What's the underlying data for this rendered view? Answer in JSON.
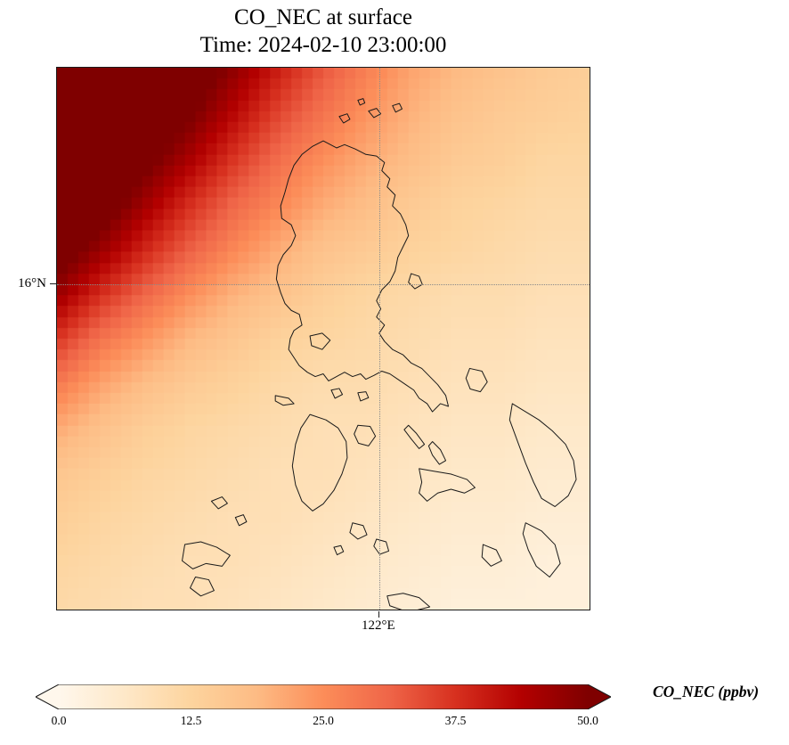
{
  "title": {
    "line1": "CO_NEC at surface",
    "line2": "Time: 2024-02-10 23:00:00"
  },
  "axes": {
    "y_tick": {
      "label": "16°N",
      "fraction": 0.398
    },
    "x_tick": {
      "label": "122°E",
      "fraction": 0.603
    }
  },
  "colorbar": {
    "label": "CO_NEC (ppbv)",
    "ticks": [
      "0.0",
      "12.5",
      "25.0",
      "37.5",
      "50.0"
    ],
    "tick_values": [
      0,
      12.5,
      25,
      37.5,
      50
    ],
    "vmin": 0,
    "vmax": 50,
    "extend": "both"
  },
  "chart_data": {
    "type": "heatmap",
    "title": "CO_NEC at surface",
    "subtitle": "Time: 2024-02-10 23:00:00",
    "variable": "CO_NEC",
    "units": "ppbv",
    "vmin": 0,
    "vmax": 50,
    "colorbar_ticks": [
      0,
      12.5,
      25,
      37.5,
      50
    ],
    "x_axis": {
      "tick_label": "122°E",
      "tick_fraction": 0.603
    },
    "y_axis": {
      "tick_label": "16°N",
      "tick_fraction": 0.398
    },
    "grid_on": true,
    "colormap": {
      "name": "OrRd",
      "stops": [
        [
          0.0,
          "#fff7ec"
        ],
        [
          0.125,
          "#fee8c8"
        ],
        [
          0.25,
          "#fdd49e"
        ],
        [
          0.375,
          "#fdbb84"
        ],
        [
          0.5,
          "#fc8d59"
        ],
        [
          0.625,
          "#ef6548"
        ],
        [
          0.75,
          "#d7301f"
        ],
        [
          0.875,
          "#b30000"
        ],
        [
          1.0,
          "#7f0000"
        ]
      ]
    },
    "grid": {
      "rows": 13,
      "cols": 13,
      "description": "CO_NEC ppbv field sampled on a 13x13 grid over the plot area, row 0 = top (north), col 0 = left (west); plume maximum in the northwest corner decaying toward the southeast",
      "values": [
        [
          65,
          63,
          60,
          55,
          48,
          40,
          33,
          27,
          22,
          19,
          17,
          15,
          14
        ],
        [
          64,
          61,
          57,
          51,
          43,
          35,
          29,
          24,
          20,
          17,
          15,
          14,
          13
        ],
        [
          62,
          58,
          52,
          45,
          37,
          30,
          25,
          21,
          18,
          15,
          14,
          12,
          12
        ],
        [
          59,
          54,
          46,
          38,
          31,
          26,
          21,
          18,
          15,
          13,
          12,
          11,
          11
        ],
        [
          55,
          47,
          39,
          32,
          26,
          21,
          17,
          15,
          13,
          12,
          11,
          10,
          10
        ],
        [
          47,
          38,
          31,
          25,
          20,
          17,
          14,
          12,
          11,
          10,
          10,
          9,
          9
        ],
        [
          37,
          29,
          24,
          19,
          16,
          13,
          12,
          11,
          10,
          9,
          9,
          8,
          8
        ],
        [
          28,
          22,
          18,
          15,
          13,
          11,
          10,
          10,
          9,
          8,
          8,
          7,
          7
        ],
        [
          21,
          17,
          14,
          12,
          11,
          10,
          9,
          9,
          8,
          7,
          7,
          6,
          6
        ],
        [
          16,
          14,
          12,
          11,
          10,
          9,
          9,
          8,
          7,
          6,
          6,
          5,
          5
        ],
        [
          14,
          12,
          11,
          10,
          9,
          9,
          8,
          7,
          6,
          5,
          5,
          4,
          4
        ],
        [
          12,
          11,
          10,
          9,
          9,
          8,
          7,
          6,
          5,
          4,
          4,
          3,
          3
        ],
        [
          11,
          10,
          9,
          9,
          8,
          7,
          6,
          5,
          4,
          3,
          3,
          3,
          3
        ]
      ]
    },
    "coastlines": [
      [
        [
          50,
          13.5
        ],
        [
          52.5,
          14.8
        ],
        [
          54,
          14.2
        ],
        [
          56,
          15
        ],
        [
          58,
          16
        ],
        [
          60,
          16.3
        ],
        [
          61.5,
          17.5
        ],
        [
          61,
          19
        ],
        [
          62.5,
          20.5
        ],
        [
          62,
          22
        ],
        [
          63.5,
          23.5
        ],
        [
          63,
          25.5
        ],
        [
          64.5,
          27
        ],
        [
          65.5,
          29
        ],
        [
          66,
          31
        ],
        [
          65,
          33
        ],
        [
          64,
          35
        ],
        [
          63.5,
          37.5
        ],
        [
          62.5,
          39.5
        ],
        [
          61,
          41
        ],
        [
          60,
          43
        ],
        [
          60.8,
          44.5
        ],
        [
          60,
          46
        ],
        [
          61.5,
          47.5
        ],
        [
          60.5,
          49
        ],
        [
          61.5,
          50.5
        ],
        [
          63,
          52
        ],
        [
          65,
          53
        ],
        [
          66.5,
          54.5
        ],
        [
          68.5,
          55.5
        ],
        [
          70,
          57
        ],
        [
          71.5,
          58.5
        ],
        [
          73,
          60.5
        ],
        [
          73.5,
          62.5
        ],
        [
          72,
          62
        ],
        [
          70.5,
          63.5
        ],
        [
          69.5,
          62
        ],
        [
          68,
          61
        ],
        [
          67,
          59.5
        ],
        [
          65.5,
          58.5
        ],
        [
          64,
          57.5
        ],
        [
          62.5,
          56.5
        ],
        [
          61,
          56
        ],
        [
          59.5,
          56.8
        ],
        [
          58,
          57.5
        ],
        [
          57,
          56.5
        ],
        [
          55.5,
          57
        ],
        [
          54,
          56.2
        ],
        [
          52.5,
          57
        ],
        [
          51,
          57.8
        ],
        [
          50,
          56.5
        ],
        [
          48.5,
          57
        ],
        [
          47,
          56.2
        ],
        [
          45.5,
          55
        ],
        [
          44.5,
          53.5
        ],
        [
          43.5,
          52
        ],
        [
          43.8,
          50
        ],
        [
          44.5,
          48.5
        ],
        [
          46,
          47.5
        ],
        [
          45.5,
          45.5
        ],
        [
          44,
          44.8
        ],
        [
          42.8,
          43.5
        ],
        [
          42,
          41.5
        ],
        [
          41.2,
          39
        ],
        [
          41.5,
          36.5
        ],
        [
          42.5,
          34.5
        ],
        [
          44,
          32.8
        ],
        [
          44.8,
          31
        ],
        [
          44,
          29
        ],
        [
          42.2,
          27.8
        ],
        [
          42,
          25.5
        ],
        [
          42.8,
          23
        ],
        [
          43.5,
          20.5
        ],
        [
          44.5,
          18
        ],
        [
          46,
          16
        ],
        [
          48,
          14.5
        ]
      ],
      [
        [
          53,
          9
        ],
        [
          54.5,
          8.5
        ],
        [
          55,
          9.5
        ],
        [
          53.8,
          10.2
        ]
      ],
      [
        [
          58.5,
          8
        ],
        [
          60,
          7.5
        ],
        [
          60.8,
          8.5
        ],
        [
          59.5,
          9.2
        ]
      ],
      [
        [
          63,
          7
        ],
        [
          64.3,
          6.6
        ],
        [
          64.8,
          7.6
        ],
        [
          63.6,
          8.2
        ]
      ],
      [
        [
          56.5,
          6
        ],
        [
          57.5,
          5.7
        ],
        [
          57.8,
          6.5
        ],
        [
          56.9,
          6.9
        ]
      ],
      [
        [
          47.5,
          64
        ],
        [
          50.5,
          65
        ],
        [
          52.8,
          66.5
        ],
        [
          54.3,
          69
        ],
        [
          54.5,
          72
        ],
        [
          53.5,
          75
        ],
        [
          52,
          78
        ],
        [
          50,
          80.5
        ],
        [
          48,
          81.8
        ],
        [
          46,
          80
        ],
        [
          44.8,
          77
        ],
        [
          44.2,
          73.5
        ],
        [
          44.8,
          69.5
        ],
        [
          45.8,
          66.5
        ]
      ],
      [
        [
          41,
          60.5
        ],
        [
          43.5,
          61
        ],
        [
          44.5,
          62
        ],
        [
          42.5,
          62.3
        ],
        [
          41,
          61.5
        ]
      ],
      [
        [
          56.5,
          66
        ],
        [
          58.8,
          66.2
        ],
        [
          59.8,
          68
        ],
        [
          58.5,
          69.8
        ],
        [
          56.6,
          69.3
        ],
        [
          55.8,
          67.6
        ]
      ],
      [
        [
          77.5,
          55.5
        ],
        [
          79.8,
          56
        ],
        [
          80.8,
          58
        ],
        [
          79.5,
          59.8
        ],
        [
          77.6,
          59.3
        ],
        [
          76.8,
          57.3
        ]
      ],
      [
        [
          66,
          66
        ],
        [
          67.5,
          67.5
        ],
        [
          69,
          69.5
        ],
        [
          68,
          70.3
        ],
        [
          66.5,
          68.5
        ],
        [
          65.2,
          66.8
        ]
      ],
      [
        [
          70.5,
          69
        ],
        [
          72,
          70.5
        ],
        [
          73,
          72.5
        ],
        [
          71.8,
          73.2
        ],
        [
          70.5,
          71.5
        ],
        [
          69.8,
          69.8
        ]
      ],
      [
        [
          68,
          74
        ],
        [
          71,
          74.5
        ],
        [
          74,
          75
        ],
        [
          77,
          76
        ],
        [
          78.5,
          77.5
        ],
        [
          76.5,
          78.5
        ],
        [
          74,
          77.8
        ],
        [
          71.5,
          78.5
        ],
        [
          69.5,
          80
        ],
        [
          68,
          78.5
        ],
        [
          68.5,
          76.5
        ]
      ],
      [
        [
          85.5,
          62
        ],
        [
          88,
          63.5
        ],
        [
          90.5,
          65
        ],
        [
          93,
          67
        ],
        [
          95.5,
          69.5
        ],
        [
          97,
          72.5
        ],
        [
          97.5,
          76
        ],
        [
          96,
          79
        ],
        [
          93.5,
          81
        ],
        [
          91,
          79.5
        ],
        [
          89.5,
          76.5
        ],
        [
          88,
          73
        ],
        [
          86.5,
          69
        ],
        [
          85,
          65
        ]
      ],
      [
        [
          88,
          84
        ],
        [
          91,
          85.5
        ],
        [
          93.5,
          88
        ],
        [
          94.5,
          91.5
        ],
        [
          92.5,
          94
        ],
        [
          90,
          92
        ],
        [
          88.5,
          89
        ],
        [
          87.5,
          86
        ]
      ],
      [
        [
          80,
          88
        ],
        [
          82.5,
          89
        ],
        [
          83.5,
          91
        ],
        [
          81.5,
          92
        ],
        [
          79.8,
          90.3
        ]
      ],
      [
        [
          55.5,
          84
        ],
        [
          57.5,
          84.5
        ],
        [
          58.2,
          86.2
        ],
        [
          56.5,
          87
        ],
        [
          55,
          85.8
        ]
      ],
      [
        [
          60,
          87
        ],
        [
          61.8,
          87.5
        ],
        [
          62.3,
          89.2
        ],
        [
          60.6,
          89.8
        ],
        [
          59.5,
          88.3
        ]
      ],
      [
        [
          52,
          88.5
        ],
        [
          53.3,
          88.2
        ],
        [
          53.8,
          89.3
        ],
        [
          52.6,
          89.9
        ]
      ],
      [
        [
          24,
          88
        ],
        [
          27,
          87.5
        ],
        [
          30,
          88.5
        ],
        [
          32.5,
          90
        ],
        [
          31,
          92
        ],
        [
          28,
          91.5
        ],
        [
          25.5,
          92.5
        ],
        [
          23.5,
          91
        ]
      ],
      [
        [
          26,
          94
        ],
        [
          28.5,
          94.5
        ],
        [
          29.5,
          96.5
        ],
        [
          27,
          97.5
        ],
        [
          25,
          96
        ]
      ],
      [
        [
          29,
          80
        ],
        [
          31,
          79.2
        ],
        [
          32,
          80.4
        ],
        [
          30.3,
          81.4
        ]
      ],
      [
        [
          33.5,
          83
        ],
        [
          35,
          82.5
        ],
        [
          35.6,
          83.8
        ],
        [
          34.2,
          84.5
        ]
      ],
      [
        [
          47.5,
          49.5
        ],
        [
          49.8,
          49
        ],
        [
          51.3,
          50.3
        ],
        [
          49.8,
          52
        ],
        [
          47.8,
          51.3
        ]
      ],
      [
        [
          66.5,
          38
        ],
        [
          68,
          38.5
        ],
        [
          68.6,
          40
        ],
        [
          67.2,
          40.8
        ],
        [
          66,
          39.6
        ]
      ],
      [
        [
          51.5,
          59.5
        ],
        [
          53,
          59.2
        ],
        [
          53.6,
          60.3
        ],
        [
          52.2,
          61
        ]
      ],
      [
        [
          56.5,
          60
        ],
        [
          58,
          59.8
        ],
        [
          58.5,
          60.9
        ],
        [
          57,
          61.5
        ]
      ],
      [
        [
          62,
          97.5
        ],
        [
          65,
          97
        ],
        [
          68,
          97.8
        ],
        [
          70,
          99.5
        ],
        [
          66,
          100.5
        ],
        [
          62.5,
          99.3
        ]
      ]
    ]
  }
}
